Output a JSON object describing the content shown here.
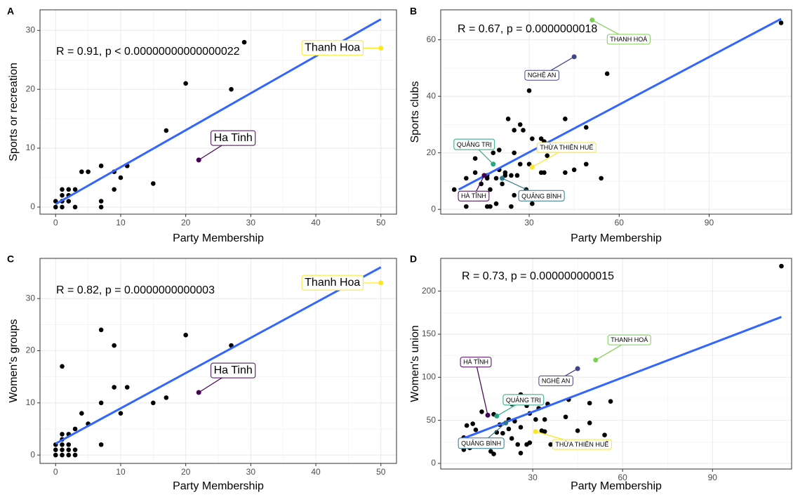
{
  "chart_data": [
    {
      "panel": "A",
      "type": "scatter",
      "xlabel": "Party Membership",
      "ylabel": "Sports or recreation",
      "annotation": "R = 0.91, p < 0.00000000000000022",
      "color": "#000000",
      "x": [
        0,
        0,
        1,
        1,
        1,
        1,
        2,
        2,
        2,
        3,
        3,
        4,
        5,
        7,
        7,
        7,
        9,
        9,
        10,
        11,
        15,
        17,
        20,
        27,
        29
      ],
      "y": [
        0,
        1,
        0,
        1,
        2,
        3,
        1,
        2,
        3,
        0,
        3,
        6,
        6,
        0,
        1,
        7,
        3,
        6,
        5,
        7,
        4,
        13,
        21,
        20,
        28
      ],
      "fit": {
        "color": "#3366FF",
        "x": [
          0,
          50
        ],
        "y": [
          0.5,
          31.9
        ]
      },
      "highlights": [
        {
          "label": "Ha Tinh",
          "x": 22,
          "y": 8,
          "color": "#440154"
        },
        {
          "label": "Thanh Hoa",
          "x": 50,
          "y": 27,
          "color": "#fde725"
        }
      ],
      "xlim": [
        -2.4,
        52.4
      ],
      "ylim": [
        -1.2,
        33.5
      ],
      "xticks": [
        0,
        10,
        20,
        30,
        40,
        50
      ],
      "yticks": [
        0,
        10,
        20,
        30
      ],
      "grid": true
    },
    {
      "panel": "B",
      "type": "scatter",
      "xlabel": "Party Membership",
      "ylabel": "Sports clubs",
      "annotation": "R = 0.67, p = 0.0000000018",
      "color": "#000000",
      "x": [
        114,
        56,
        30,
        42,
        23,
        27,
        25,
        28,
        49,
        31,
        34,
        35,
        25,
        20,
        18,
        12,
        36,
        49,
        45,
        42,
        34,
        35,
        31,
        30,
        27,
        22,
        22,
        20,
        12,
        9,
        16,
        16,
        19,
        24,
        26,
        54,
        14,
        21,
        17,
        29,
        29,
        25,
        13,
        19,
        31,
        16,
        17,
        9,
        24,
        5
      ],
      "y": [
        66,
        48,
        42,
        32,
        32,
        30,
        28,
        28,
        29,
        25,
        25,
        24,
        20,
        21,
        20,
        18,
        19,
        16,
        14,
        13,
        13,
        13,
        15,
        16,
        16,
        13,
        12,
        14,
        13,
        11,
        12,
        11,
        11,
        12,
        12,
        11,
        9,
        9,
        7,
        7,
        6,
        5,
        5,
        2,
        2,
        1,
        1,
        1,
        1,
        7
      ],
      "fit": {
        "color": "#3366FF",
        "x": [
          6.5,
          114
        ],
        "y": [
          7,
          67.4
        ]
      },
      "highlights": [
        {
          "label": "THANH HOÁ",
          "x": 51,
          "y": 67,
          "color": "#7ad151"
        },
        {
          "label": "NGHỆ AN",
          "x": 45,
          "y": 54,
          "color": "#414487"
        },
        {
          "label": "QUẢNG TRỊ",
          "x": 18,
          "y": 16,
          "color": "#22a884"
        },
        {
          "label": "THỪA THIÊN HUẾ",
          "x": 31,
          "y": 15,
          "color": "#fde725"
        },
        {
          "label": "QUẢNG BÌNH",
          "x": 21,
          "y": 11,
          "color": "#2a788e"
        },
        {
          "label": "HÀ TĨNH",
          "x": 15,
          "y": 12,
          "color": "#440154"
        }
      ],
      "xlim": [
        0.5,
        117.5
      ],
      "ylim": [
        -1.7,
        70.6
      ],
      "xticks": [
        30,
        60,
        90
      ],
      "yticks": [
        0,
        20,
        40,
        60
      ],
      "grid": true
    },
    {
      "panel": "C",
      "type": "scatter",
      "xlabel": "Party Membership",
      "ylabel": "Women's groups",
      "annotation": "R = 0.82, p = 0.0000000000003",
      "color": "#000000",
      "x": [
        0,
        0,
        0,
        1,
        1,
        1,
        1,
        1,
        1,
        2,
        2,
        2,
        2,
        3,
        3,
        3,
        4,
        5,
        7,
        7,
        7,
        9,
        9,
        10,
        11,
        15,
        17,
        20,
        27
      ],
      "y": [
        0,
        1,
        2,
        0,
        1,
        2,
        3,
        4,
        17,
        0,
        1,
        2,
        4,
        0,
        1,
        5,
        8,
        6,
        2,
        10,
        24,
        13,
        21,
        8,
        13,
        10,
        11,
        23,
        21
      ],
      "fit": {
        "color": "#3366FF",
        "x": [
          0,
          50
        ],
        "y": [
          2.2,
          36
        ]
      },
      "highlights": [
        {
          "label": "Ha Tinh",
          "x": 22,
          "y": 12,
          "color": "#440154"
        },
        {
          "label": "Thanh Hoa",
          "x": 50,
          "y": 33,
          "color": "#fde725"
        }
      ],
      "xlim": [
        -2.4,
        52.4
      ],
      "ylim": [
        -1.6,
        37.7
      ],
      "xticks": [
        0,
        10,
        20,
        30,
        40,
        50
      ],
      "yticks": [
        0,
        10,
        20,
        30
      ],
      "grid": true
    },
    {
      "panel": "D",
      "type": "scatter",
      "xlabel": "Party Membership",
      "ylabel": "Women's union",
      "annotation": "R = 0.73, p = 0.000000000015",
      "color": "#000000",
      "x": [
        113,
        56,
        49,
        42,
        35,
        32,
        26,
        23,
        28,
        29,
        31,
        34,
        41,
        49,
        45,
        54,
        33,
        34,
        36,
        29,
        26,
        24,
        22,
        20,
        18,
        23,
        25,
        28,
        26,
        19,
        17,
        13,
        11,
        8,
        7,
        7,
        9,
        12,
        14,
        16,
        17,
        10,
        22
      ],
      "y": [
        229,
        72,
        70,
        74,
        69,
        64,
        80,
        69,
        67,
        58,
        51,
        51,
        54,
        47,
        38,
        33,
        38,
        37,
        22,
        24,
        42,
        49,
        40,
        35,
        36,
        29,
        22,
        22,
        12,
        45,
        57,
        60,
        39,
        44,
        30,
        16,
        18,
        24,
        21,
        14,
        11,
        46,
        51
      ],
      "fit": {
        "color": "#3366FF",
        "x": [
          6,
          113
        ],
        "y": [
          28,
          170
        ]
      },
      "highlights": [
        {
          "label": "THANH HOÁ",
          "x": 51,
          "y": 120,
          "color": "#7ad151"
        },
        {
          "label": "NGHỆ AN",
          "x": 45,
          "y": 110,
          "color": "#414487"
        },
        {
          "label": "HÀ TĨNH",
          "x": 15,
          "y": 56,
          "color": "#440154"
        },
        {
          "label": "QUẢNG TRỊ",
          "x": 18,
          "y": 55,
          "color": "#22a884"
        },
        {
          "label": "QUẢNG BÌNH",
          "x": 21,
          "y": 47,
          "color": "#2a788e"
        },
        {
          "label": "THỪA THIÊN HUẾ",
          "x": 31,
          "y": 37,
          "color": "#fde725"
        }
      ],
      "xlim": [
        -0.7,
        116.4
      ],
      "ylim": [
        -6.5,
        238
      ],
      "xticks": [
        30,
        60,
        90
      ],
      "yticks": [
        0,
        50,
        100,
        150,
        200
      ],
      "grid": true
    }
  ]
}
